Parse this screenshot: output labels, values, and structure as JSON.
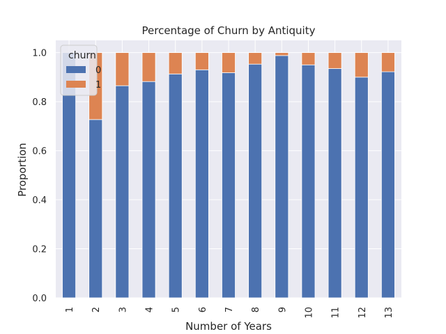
{
  "chart_data": {
    "type": "bar",
    "stacked": true,
    "title": "Percentage of Churn by Antiquity",
    "xlabel": "Number of Years",
    "ylabel": "Proportion",
    "ylim": [
      0,
      1.05
    ],
    "yticks": [
      "0.0",
      "0.2",
      "0.4",
      "0.6",
      "0.8",
      "1.0"
    ],
    "grid": true,
    "legend": {
      "title": "churn",
      "placement": "top-left"
    },
    "categories": [
      "1",
      "2",
      "3",
      "4",
      "5",
      "6",
      "7",
      "8",
      "9",
      "10",
      "11",
      "12",
      "13"
    ],
    "series": [
      {
        "name": "0",
        "color": "#4c72b0",
        "values": [
          1.0,
          0.727,
          0.865,
          0.882,
          0.913,
          0.93,
          0.918,
          0.953,
          0.988,
          0.95,
          0.935,
          0.9,
          0.922
        ]
      },
      {
        "name": "1",
        "color": "#dd8452",
        "values": [
          0.0,
          0.273,
          0.135,
          0.118,
          0.087,
          0.07,
          0.082,
          0.047,
          0.012,
          0.05,
          0.065,
          0.1,
          0.078
        ]
      }
    ]
  }
}
